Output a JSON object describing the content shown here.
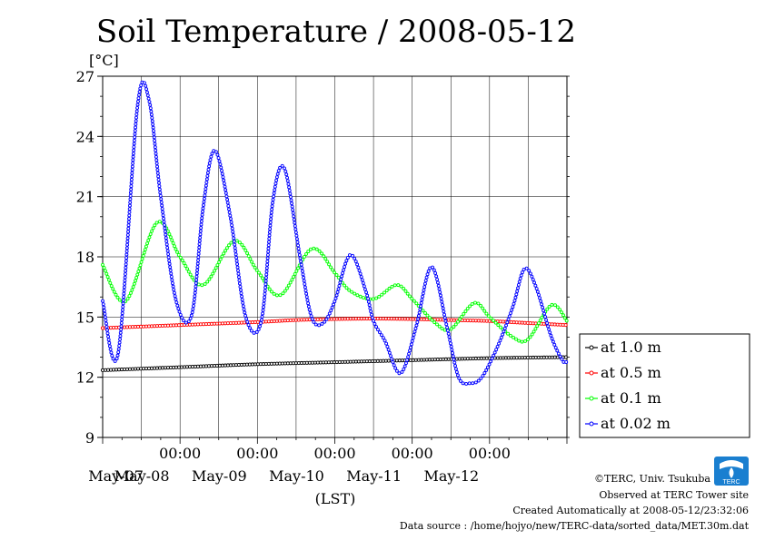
{
  "chart_data": {
    "type": "line",
    "title": "Soil Temperature / 2008-05-12",
    "ylabel": "[°C]",
    "xlabel": "(LST)",
    "ylim": [
      9,
      27
    ],
    "yticks": [
      9,
      12,
      15,
      18,
      21,
      24,
      27
    ],
    "xlim": [
      0,
      6
    ],
    "xtick_labels": [
      {
        "x": 1,
        "top": "00:00",
        "bottom": "May-08"
      },
      {
        "x": 2,
        "top": "00:00",
        "bottom": "May-09"
      },
      {
        "x": 3,
        "top": "00:00",
        "bottom": "May-10"
      },
      {
        "x": 4,
        "top": "00:00",
        "bottom": "May-11"
      },
      {
        "x": 5,
        "top": "00:00",
        "bottom": "May-12"
      }
    ],
    "first_day_label": "May-07",
    "grid": true,
    "legend_position": "right",
    "series": [
      {
        "name": "at 1.0 m",
        "color": "#000000",
        "x": [
          0.0,
          1.0,
          2.0,
          3.0,
          4.0,
          5.0,
          6.0
        ],
        "y": [
          12.35,
          12.5,
          12.65,
          12.75,
          12.85,
          12.95,
          13.0
        ]
      },
      {
        "name": "at 0.5 m",
        "color": "#ff0000",
        "x": [
          0.0,
          1.0,
          2.0,
          2.5,
          3.0,
          3.5,
          4.0,
          4.5,
          5.0,
          5.5,
          6.0
        ],
        "y": [
          14.45,
          14.6,
          14.75,
          14.85,
          14.9,
          14.92,
          14.9,
          14.85,
          14.8,
          14.7,
          14.6
        ]
      },
      {
        "name": "at 0.1 m",
        "color": "#00ff00",
        "x": [
          0.0,
          0.3,
          0.7,
          1.0,
          1.3,
          1.7,
          2.0,
          2.3,
          2.7,
          3.0,
          3.2,
          3.5,
          3.8,
          4.0,
          4.3,
          4.5,
          4.8,
          5.0,
          5.3,
          5.5,
          5.8,
          6.0
        ],
        "y": [
          17.6,
          15.8,
          19.7,
          18.0,
          16.6,
          18.8,
          17.3,
          16.1,
          18.4,
          17.2,
          16.3,
          15.9,
          16.6,
          15.9,
          14.7,
          14.4,
          15.7,
          15.0,
          14.0,
          13.9,
          15.6,
          14.8
        ],
        "markers": true
      },
      {
        "name": "at 0.02 m",
        "color": "#0000ff",
        "x": [
          0.0,
          0.2,
          0.45,
          0.6,
          0.75,
          0.95,
          1.15,
          1.3,
          1.45,
          1.65,
          1.85,
          2.05,
          2.2,
          2.35,
          2.55,
          2.7,
          2.85,
          3.0,
          3.2,
          3.4,
          3.5,
          3.65,
          3.85,
          4.05,
          4.25,
          4.45,
          4.6,
          4.75,
          4.9,
          5.1,
          5.3,
          5.45,
          5.6,
          5.8,
          5.95,
          6.0
        ],
        "y": [
          15.8,
          13.2,
          25.5,
          25.8,
          21.0,
          15.8,
          15.1,
          20.5,
          23.3,
          20.0,
          15.0,
          14.8,
          20.8,
          22.4,
          18.0,
          15.0,
          14.7,
          15.8,
          18.1,
          16.3,
          14.8,
          13.8,
          12.2,
          14.5,
          17.5,
          14.5,
          12.0,
          11.7,
          12.0,
          13.5,
          15.5,
          17.4,
          16.5,
          14.0,
          12.8,
          12.8
        ],
        "markers": true
      }
    ]
  },
  "credits": {
    "copyright": "©TERC, Univ. Tsukuba",
    "observed": "Observed at TERC Tower site",
    "created": "Created Automatically at 2008-05-12/23:32:06",
    "source": "Data source : /home/hojyo/new/TERC-data/sorted_data/MET.30m.dat",
    "logo_text": "TERC"
  }
}
